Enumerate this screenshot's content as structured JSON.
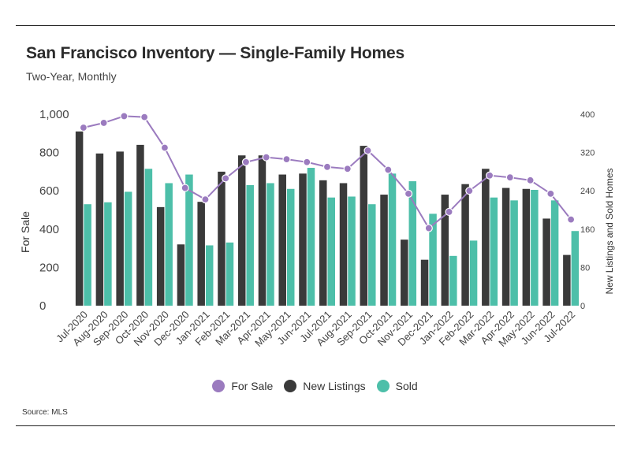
{
  "header": {
    "title": "San Francisco Inventory — Single-Family Homes",
    "subtitle": "Two-Year, Monthly"
  },
  "footer": {
    "source": "Source:  MLS"
  },
  "colors": {
    "for_sale": "#9b7bbf",
    "new_listings": "#3a3a3a",
    "sold": "#4dbfa9"
  },
  "chart_data": {
    "type": "bar",
    "categories": [
      "Jul-2020",
      "Aug-2020",
      "Sep-2020",
      "Oct-2020",
      "Nov-2020",
      "Dec-2020",
      "Jan-2021",
      "Feb-2021",
      "Mar-2021",
      "Apr-2021",
      "May-2021",
      "Jun-2021",
      "Jul-2021",
      "Aug-2021",
      "Sep-2021",
      "Oct-2021",
      "Nov-2021",
      "Dec-2021",
      "Jan-2022",
      "Feb-2022",
      "Mar-2022",
      "Apr-2022",
      "May-2022",
      "Jun-2022",
      "Jul-2022"
    ],
    "series": [
      {
        "name": "For Sale",
        "type": "line",
        "axis": "left",
        "values": [
          930,
          955,
          990,
          985,
          825,
          615,
          555,
          665,
          750,
          775,
          765,
          750,
          725,
          715,
          810,
          710,
          585,
          405,
          490,
          600,
          680,
          670,
          655,
          585,
          450
        ]
      },
      {
        "name": "New Listings",
        "type": "bar",
        "axis": "right",
        "values": [
          364,
          318,
          322,
          336,
          206,
          128,
          217,
          280,
          314,
          314,
          274,
          276,
          262,
          256,
          334,
          232,
          138,
          96,
          232,
          254,
          286,
          246,
          244,
          182,
          106
        ]
      },
      {
        "name": "Sold",
        "type": "bar",
        "axis": "right",
        "values": [
          212,
          216,
          238,
          286,
          256,
          274,
          126,
          132,
          252,
          256,
          244,
          288,
          226,
          228,
          212,
          276,
          260,
          192,
          104,
          136,
          226,
          220,
          242,
          220,
          156
        ]
      }
    ],
    "y_left": {
      "label": "For Sale",
      "ticks": [
        "0",
        "200",
        "400",
        "600",
        "800",
        "1,000"
      ],
      "ylim": [
        0,
        1000
      ]
    },
    "y_right": {
      "label": "New Listings and Sold Homes",
      "ticks": [
        "0",
        "80",
        "160",
        "240",
        "320",
        "400"
      ],
      "ylim": [
        0,
        400
      ]
    },
    "legend": {
      "position": "bottom-center",
      "entries": [
        "For Sale",
        "New Listings",
        "Sold"
      ]
    },
    "grid": false
  }
}
